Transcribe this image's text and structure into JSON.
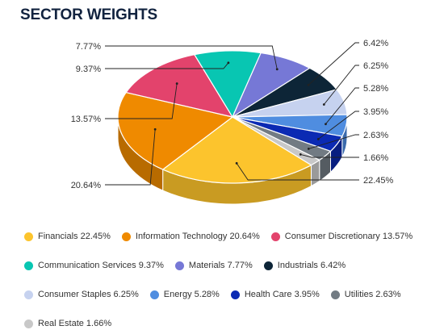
{
  "chart_data": {
    "type": "pie",
    "title": "SECTOR WEIGHTS",
    "three_d": true,
    "legend_position": "bottom",
    "slices": [
      {
        "label": "Financials",
        "value": 22.45,
        "color": "#fcc42d",
        "side": "#c99b22",
        "pct_label": "22.45%"
      },
      {
        "label": "Information Technology",
        "value": 20.64,
        "color": "#ef8a00",
        "side": "#b86b00",
        "pct_label": "20.64%"
      },
      {
        "label": "Consumer Discretionary",
        "value": 13.57,
        "color": "#e3436c",
        "side": "#a8324f",
        "pct_label": "13.57%"
      },
      {
        "label": "Communication Services",
        "value": 9.37,
        "color": "#08c6b2",
        "side": "#079686",
        "pct_label": "9.37%"
      },
      {
        "label": "Materials",
        "value": 7.77,
        "color": "#7678d6",
        "side": "#5759a3",
        "pct_label": "7.77%"
      },
      {
        "label": "Industrials",
        "value": 6.42,
        "color": "#0d2537",
        "side": "#091a28",
        "pct_label": "6.42%"
      },
      {
        "label": "Consumer Staples",
        "value": 6.25,
        "color": "#c6d2ef",
        "side": "#9aa5bf",
        "pct_label": "6.25%"
      },
      {
        "label": "Energy",
        "value": 5.28,
        "color": "#4f8de0",
        "side": "#3b6aab",
        "pct_label": "5.28%"
      },
      {
        "label": "Health Care",
        "value": 3.95,
        "color": "#0b2ab3",
        "side": "#081e80",
        "pct_label": "3.95%"
      },
      {
        "label": "Utilities",
        "value": 2.63,
        "color": "#727b83",
        "side": "#555c62",
        "pct_label": "2.63%"
      },
      {
        "label": "Real Estate",
        "value": 1.66,
        "color": "#c8c8c8",
        "side": "#9a9a9a",
        "pct_label": "1.66%"
      }
    ]
  }
}
